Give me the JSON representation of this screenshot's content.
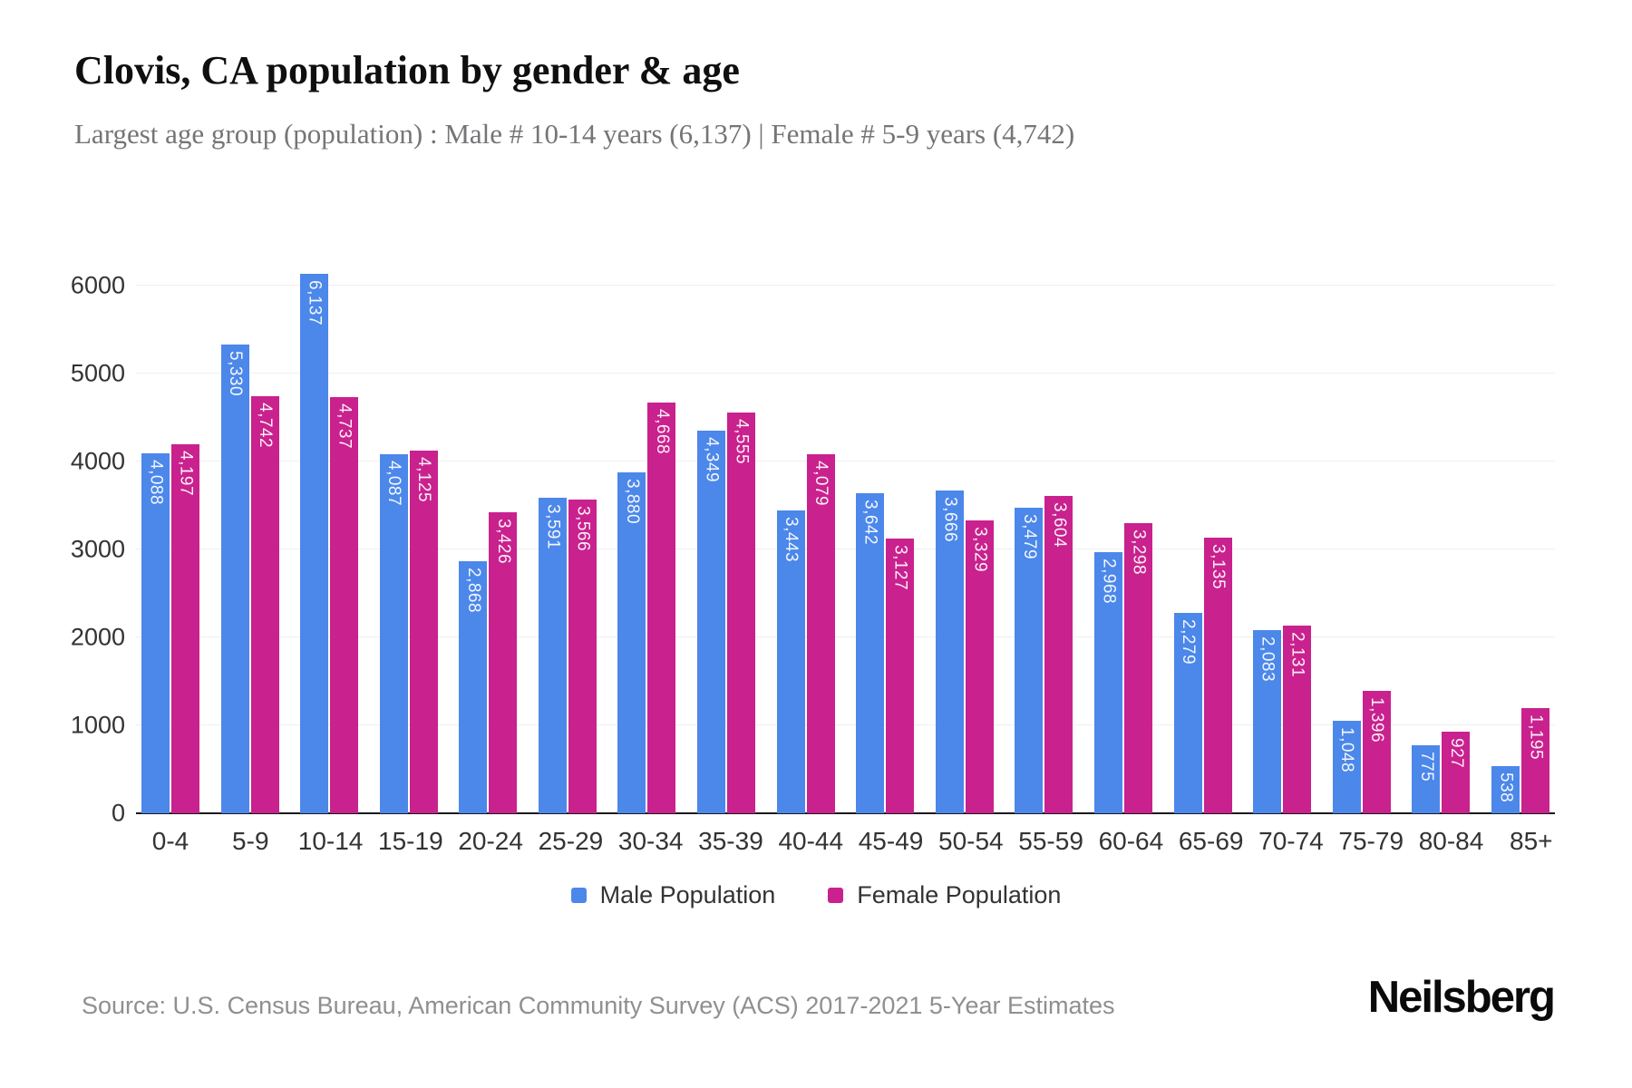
{
  "header": {
    "title": "Clovis, CA population by gender & age",
    "subtitle": "Largest age group (population) : Male # 10-14 years (6,137) | Female # 5-9 years (4,742)"
  },
  "chart_data": {
    "type": "bar",
    "title": "Clovis, CA population by gender & age",
    "categories": [
      "0-4",
      "5-9",
      "10-14",
      "15-19",
      "20-24",
      "25-29",
      "30-34",
      "35-39",
      "40-44",
      "45-49",
      "50-54",
      "55-59",
      "60-64",
      "65-69",
      "70-74",
      "75-79",
      "80-84",
      "85+"
    ],
    "series": [
      {
        "name": "Male Population",
        "color": "#4c87ea",
        "values": [
          4088,
          5330,
          6137,
          4087,
          2868,
          3591,
          3880,
          4349,
          3443,
          3642,
          3666,
          3479,
          2968,
          2279,
          2083,
          1048,
          775,
          538
        ]
      },
      {
        "name": "Female Population",
        "color": "#c9218e",
        "values": [
          4197,
          4742,
          4737,
          4125,
          3426,
          3566,
          4668,
          4555,
          4079,
          3127,
          3329,
          3604,
          3298,
          3135,
          2131,
          1396,
          927,
          1195
        ]
      }
    ],
    "xlabel": "",
    "ylabel": "",
    "ylim": [
      0,
      6000
    ],
    "yticks": [
      0,
      1000,
      2000,
      3000,
      4000,
      5000,
      6000
    ],
    "grid": true,
    "legend_position": "bottom",
    "bar_value_labels": true
  },
  "legend": {
    "items": [
      {
        "label": "Male Population",
        "color": "#4c87ea"
      },
      {
        "label": "Female Population",
        "color": "#c9218e"
      }
    ]
  },
  "footer": {
    "source": "Source: U.S. Census Bureau, American Community Survey (ACS) 2017-2021 5-Year Estimates",
    "brand": "Neilsberg"
  }
}
